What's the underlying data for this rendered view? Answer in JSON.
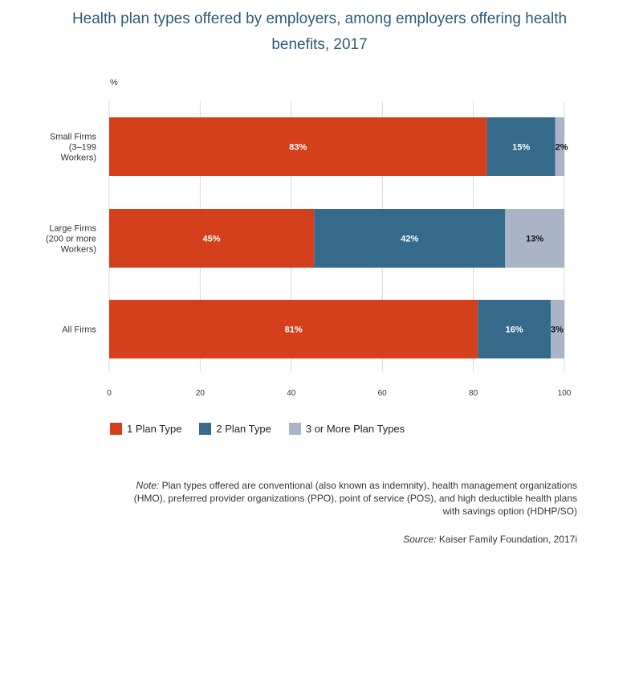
{
  "title": "Health plan types offered by employers, among employers offering health benefits, 2017",
  "unit_label": "%",
  "chart_data": {
    "type": "bar",
    "orientation": "horizontal",
    "stacked": true,
    "categories": [
      "Small Firms (3–199 Workers)",
      "Large Firms (200 or more Workers)",
      "All Firms"
    ],
    "category_lines": [
      [
        "Small Firms",
        "(3–199",
        "Workers)"
      ],
      [
        "Large Firms",
        "(200 or more",
        "Workers)"
      ],
      [
        "All Firms"
      ]
    ],
    "series": [
      {
        "name": "1 Plan Type",
        "values": [
          83,
          45,
          81
        ],
        "labels": [
          "83%",
          "45%",
          "81%"
        ],
        "color": "#d4401c",
        "label_color": "#ffffff"
      },
      {
        "name": "2 Plan Type",
        "values": [
          15,
          42,
          16
        ],
        "labels": [
          "15%",
          "42%",
          "16%"
        ],
        "color": "#356a8b",
        "label_color": "#ffffff"
      },
      {
        "name": "3 or More Plan Types",
        "values": [
          2,
          13,
          3
        ],
        "labels": [
          "2%",
          "13%",
          "3%"
        ],
        "color": "#a9b4c6",
        "label_color": "#111111"
      }
    ],
    "xlim": [
      0,
      100
    ],
    "xticks": [
      "0",
      "20",
      "40",
      "60",
      "80",
      "100"
    ],
    "grid": true,
    "legend_position": "bottom-left"
  },
  "note_label": "Note:",
  "note_text": " Plan types offered are conventional (also known as indemnity), health management organizations (HMO), preferred provider organizations (PPO), point of service (POS), and high deductible health plans with savings option (HDHP/SO)",
  "source_label": "Source:",
  "source_text": " Kaiser Family Foundation, 2017i"
}
